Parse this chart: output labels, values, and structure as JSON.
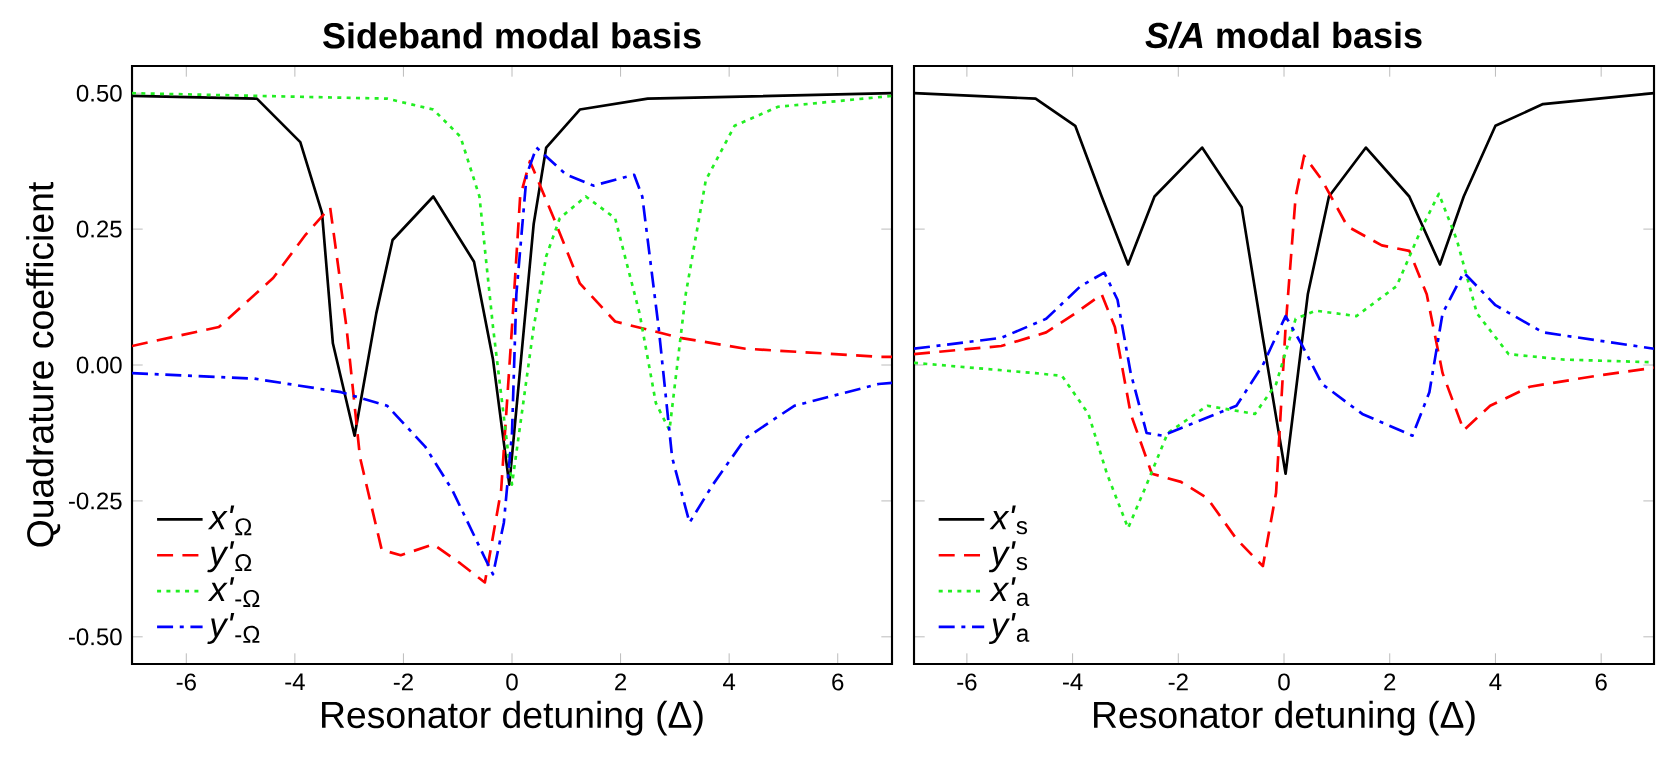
{
  "chart_data": [
    {
      "type": "line",
      "title": "Sideband modal basis",
      "xlabel": "Resonator detuning (Δ)",
      "ylabel": "Quadrature coefficient",
      "xlim": [
        -7,
        7
      ],
      "ylim": [
        -0.55,
        0.55
      ],
      "xticks": [
        -6,
        -4,
        -2,
        0,
        2,
        4,
        6
      ],
      "yticks": [
        {
          "value": -0.5,
          "label": "-0.50"
        },
        {
          "value": -0.25,
          "label": "-0.25"
        },
        {
          "value": 0,
          "label": "0.00"
        },
        {
          "value": 0.25,
          "label": "0.25"
        },
        {
          "value": 0.5,
          "label": "0.50"
        }
      ],
      "legend": "bottom left",
      "grid": false,
      "marker": "none",
      "series": [
        {
          "name": "*x'*$_{Ω}$",
          "color": "#000000",
          "line_style": "solid",
          "x": [
            -7,
            -4.7,
            -3.9,
            -3.5,
            -3.3,
            -2.9,
            -2.5,
            -2.2,
            -1.45,
            -0.7,
            -0.35,
            -0.05,
            0.4,
            0.63,
            1.25,
            2.5,
            7
          ],
          "values": [
            0.495,
            0.49,
            0.41,
            0.28,
            0.04,
            -0.13,
            0.095,
            0.23,
            0.31,
            0.19,
            0.01,
            -0.22,
            0.26,
            0.4,
            0.47,
            0.49,
            0.5
          ]
        },
        {
          "name": "*y'*$_{Ω}$",
          "color": "#ff0000",
          "line_style": "dashed",
          "x": [
            -7,
            -5.4,
            -4.4,
            -3.8,
            -3.35,
            -3.05,
            -2.8,
            -2.4,
            -2.05,
            -1.45,
            -0.95,
            -0.5,
            -0.2,
            0,
            0.15,
            0.33,
            0.77,
            1.25,
            1.9,
            3.1,
            4.3,
            6.8,
            7
          ],
          "values": [
            0.035,
            0.07,
            0.16,
            0.24,
            0.29,
            0.07,
            -0.17,
            -0.34,
            -0.35,
            -0.33,
            -0.365,
            -0.4,
            -0.23,
            0.07,
            0.31,
            0.375,
            0.27,
            0.15,
            0.08,
            0.05,
            0.03,
            0.015,
            0.015
          ]
        },
        {
          "name": "*x'*$_{-Ω}$",
          "color": "#22ee22",
          "line_style": "dotted",
          "x": [
            -7,
            -2.3,
            -1.45,
            -0.95,
            -0.6,
            -0.35,
            0,
            0.4,
            0.63,
            0.88,
            1.36,
            1.9,
            2.35,
            2.65,
            2.9,
            3.2,
            3.57,
            4.1,
            4.9,
            7
          ],
          "values": [
            0.5,
            0.49,
            0.47,
            0.42,
            0.31,
            0.07,
            -0.22,
            0.07,
            0.2,
            0.27,
            0.31,
            0.27,
            0.095,
            -0.07,
            -0.12,
            0.13,
            0.34,
            0.44,
            0.475,
            0.495
          ]
        },
        {
          "name": "*y'*$_{-Ω}$",
          "color": "#0000ff",
          "line_style": "dashdot",
          "x": [
            -7,
            -4.75,
            -3.15,
            -2.3,
            -1.6,
            -1.1,
            -0.5,
            -0.35,
            -0.15,
            0,
            0.08,
            0.27,
            0.45,
            1,
            1.5,
            2.25,
            2.4,
            2.7,
            2.95,
            3.27,
            3.7,
            4.3,
            5.2,
            6.75,
            7
          ],
          "values": [
            -0.015,
            -0.025,
            -0.05,
            -0.075,
            -0.15,
            -0.23,
            -0.355,
            -0.385,
            -0.29,
            -0.125,
            0.13,
            0.35,
            0.4,
            0.35,
            0.33,
            0.35,
            0.31,
            0.07,
            -0.17,
            -0.29,
            -0.22,
            -0.135,
            -0.075,
            -0.035,
            -0.033
          ]
        }
      ]
    },
    {
      "type": "line",
      "title": "*S/A* modal basis",
      "xlabel": "Resonator detuning (Δ)",
      "xlim": [
        -7,
        7
      ],
      "ylim": [
        -0.55,
        0.55
      ],
      "xticks": [
        -6,
        -4,
        -2,
        0,
        2,
        4,
        6
      ],
      "yticks": [
        {
          "value": -0.5,
          "label": null
        },
        {
          "value": -0.25,
          "label": null
        },
        {
          "value": 0,
          "label": null
        },
        {
          "value": 0.25,
          "label": null
        },
        {
          "value": 0.5,
          "label": null
        }
      ],
      "tick_labels": "x",
      "legend": "bottom left",
      "grid": false,
      "marker": "none",
      "series": [
        {
          "name": "*x'*$_{s}$",
          "color": "#000000",
          "line_style": "solid",
          "x": [
            -7,
            -4.7,
            -3.95,
            -3.45,
            -2.95,
            -2.45,
            -1.55,
            -0.8,
            -0.4,
            0.03,
            0.45,
            0.85,
            1.55,
            2.37,
            2.95,
            3.4,
            4.0,
            4.9,
            7
          ],
          "values": [
            0.5,
            0.49,
            0.44,
            0.31,
            0.185,
            0.31,
            0.4,
            0.29,
            0.05,
            -0.2,
            0.13,
            0.31,
            0.4,
            0.31,
            0.185,
            0.31,
            0.44,
            0.48,
            0.5
          ]
        },
        {
          "name": "*y'*$_{s}$",
          "color": "#ff0000",
          "line_style": "dashed",
          "x": [
            -7,
            -5.35,
            -4.5,
            -3.95,
            -3.45,
            -3.2,
            -2.9,
            -2.5,
            -1.95,
            -1.45,
            -0.9,
            -0.4,
            -0.15,
            0.03,
            0.22,
            0.38,
            0.72,
            1.2,
            1.85,
            2.37,
            2.7,
            3.0,
            3.4,
            3.9,
            4.65,
            5.9,
            7
          ],
          "values": [
            0.02,
            0.035,
            0.06,
            0.095,
            0.13,
            0.07,
            -0.09,
            -0.2,
            -0.215,
            -0.245,
            -0.32,
            -0.37,
            -0.235,
            0.07,
            0.31,
            0.385,
            0.34,
            0.255,
            0.22,
            0.21,
            0.13,
            -0.015,
            -0.12,
            -0.075,
            -0.04,
            -0.02,
            -0.005
          ]
        },
        {
          "name": "*x'*$_{a}$",
          "color": "#22ee22",
          "line_style": "dotted",
          "x": [
            -7,
            -4.7,
            -4.2,
            -3.7,
            -3.35,
            -2.95,
            -2.6,
            -2.2,
            -1.45,
            -0.55,
            -0.15,
            0.22,
            0.6,
            1.37,
            2.13,
            2.62,
            2.93,
            3.27,
            3.65,
            4.25,
            5.3,
            7
          ],
          "values": [
            0.004,
            -0.015,
            -0.02,
            -0.09,
            -0.2,
            -0.3,
            -0.22,
            -0.125,
            -0.075,
            -0.09,
            -0.035,
            0.085,
            0.1,
            0.09,
            0.145,
            0.255,
            0.315,
            0.23,
            0.095,
            0.02,
            0.01,
            0.005
          ]
        },
        {
          "name": "*y'*$_{a}$",
          "color": "#0000ff",
          "line_style": "dashdot",
          "x": [
            -7,
            -5.35,
            -4.5,
            -3.85,
            -3.4,
            -3.15,
            -2.9,
            -2.6,
            -2.3,
            -1.67,
            -0.9,
            -0.4,
            0.03,
            0.35,
            0.72,
            1.48,
            2.43,
            2.75,
            3.0,
            3.4,
            4.0,
            4.9,
            7
          ],
          "values": [
            0.03,
            0.05,
            0.085,
            0.145,
            0.17,
            0.12,
            -0.015,
            -0.125,
            -0.13,
            -0.105,
            -0.075,
            0,
            0.09,
            0.035,
            -0.035,
            -0.09,
            -0.13,
            -0.05,
            0.095,
            0.17,
            0.11,
            0.06,
            0.03
          ]
        }
      ]
    }
  ]
}
